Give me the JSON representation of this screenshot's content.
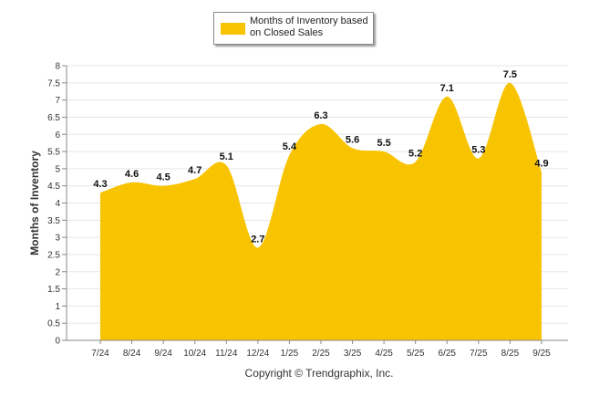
{
  "chart_data": {
    "type": "area",
    "categories": [
      "7/24",
      "8/24",
      "9/24",
      "10/24",
      "11/24",
      "12/24",
      "1/25",
      "2/25",
      "3/25",
      "4/25",
      "5/25",
      "6/25",
      "7/25",
      "8/25",
      "9/25"
    ],
    "series": [
      {
        "name": "Months of Inventory based on Closed Sales",
        "values": [
          4.3,
          4.6,
          4.5,
          4.7,
          5.1,
          2.7,
          5.4,
          6.3,
          5.6,
          5.5,
          5.2,
          7.1,
          5.3,
          7.5,
          4.9
        ]
      }
    ],
    "data_labels": [
      "4.3",
      "4.6",
      "4.5",
      "4.7",
      "5.1",
      "2.7",
      "5.4",
      "6.3",
      "5.6",
      "5.5",
      "5.2",
      "7.1",
      "5.3",
      "7.5",
      "4.9"
    ],
    "title": "",
    "xlabel": "",
    "ylabel": "Months of Inventory",
    "ylim": [
      0,
      8
    ],
    "yticks": [
      "0",
      "0.5",
      "1",
      "1.5",
      "2",
      "2.5",
      "3",
      "3.5",
      "4",
      "4.5",
      "5",
      "5.5",
      "6",
      "6.5",
      "7",
      "7.5",
      "8"
    ],
    "grid": true,
    "legend_position": "top-center",
    "colors": {
      "fill": "#F8C402",
      "grid": "#E6E6E6",
      "axis": "#888888"
    }
  },
  "legend": {
    "label": "Months of Inventory based on Closed Sales"
  },
  "footer": {
    "copyright": "Copyright © Trendgraphix, Inc."
  }
}
